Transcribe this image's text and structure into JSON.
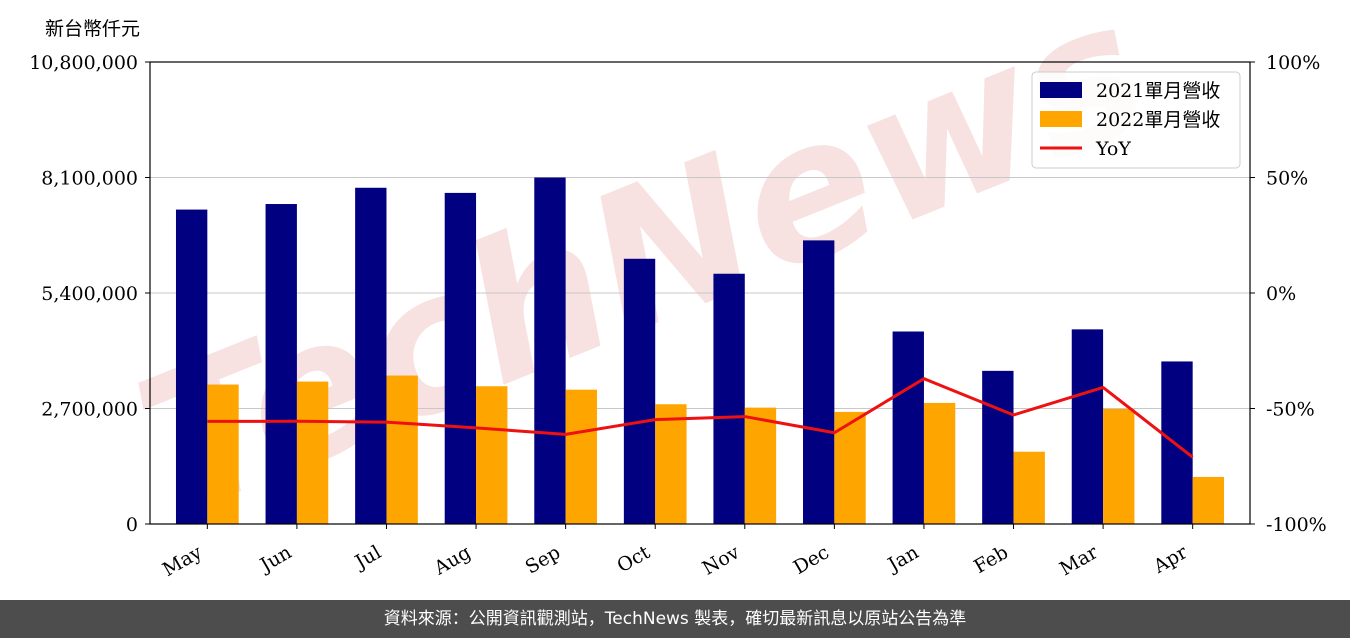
{
  "unit_label": "新台幣仟元",
  "watermark_text": "TechNews",
  "footer_text": "資料來源：公開資訊觀測站，TechNews 製表，確切最新訊息以原站公告為準",
  "colors": {
    "series_2021": "#000080",
    "series_2022": "#ffa500",
    "yoy": "#ee1111",
    "footer_bg": "#4d4d4d",
    "watermark": "#f0c8c8"
  },
  "chart_data": {
    "type": "bar",
    "categories": [
      "May",
      "Jun",
      "Jul",
      "Aug",
      "Sep",
      "Oct",
      "Nov",
      "Dec",
      "Jan",
      "Feb",
      "Mar",
      "Apr"
    ],
    "series": [
      {
        "name": "2021單月營收",
        "values": [
          7350000,
          7480000,
          7860000,
          7740000,
          8100000,
          6200000,
          5850000,
          6630000,
          4500000,
          3580000,
          4550000,
          3800000
        ]
      },
      {
        "name": "2022單月營收",
        "values": [
          3260000,
          3330000,
          3470000,
          3220000,
          3140000,
          2800000,
          2720000,
          2620000,
          2830000,
          1690000,
          2690000,
          1100000
        ]
      }
    ],
    "line_series": {
      "name": "YoY",
      "axis": "right",
      "values": [
        -55.6,
        -55.5,
        -55.9,
        -58.4,
        -61.2,
        -54.8,
        -53.5,
        -60.5,
        -37.1,
        -52.8,
        -40.9,
        -71.1
      ]
    },
    "ylim": [
      0,
      10800000
    ],
    "y_ticks": [
      "0",
      "2,700,000",
      "5,400,000",
      "8,100,000",
      "10,800,000"
    ],
    "y2lim": [
      -100,
      100
    ],
    "y2_ticks": [
      "-100%",
      "-50%",
      "0%",
      "50%",
      "100%"
    ],
    "grid": "horizontal",
    "legend_position": "top-right"
  }
}
